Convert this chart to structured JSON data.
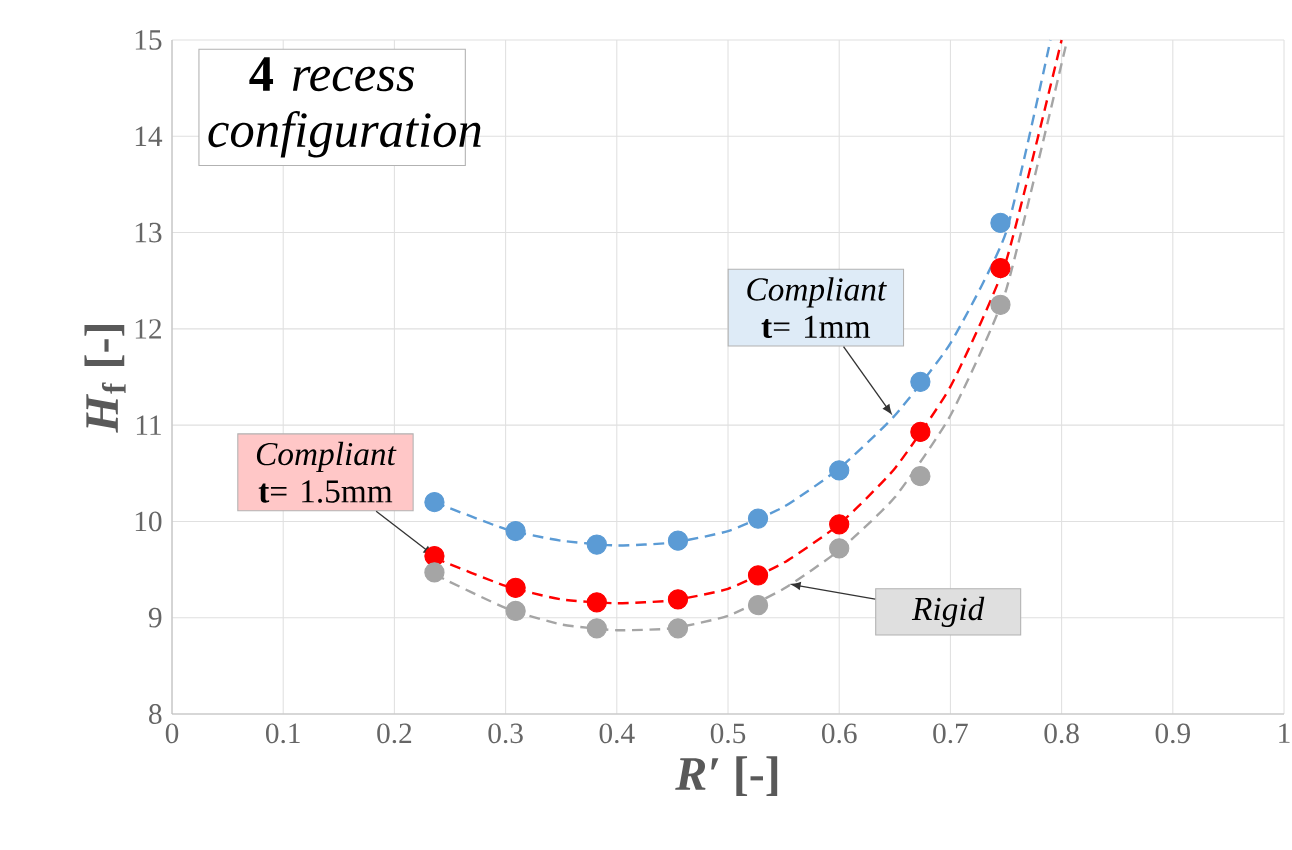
{
  "chart_data": {
    "type": "scatter",
    "xlabel": "*R′* [-]",
    "ylabel": "*H*$_{f}$ [-]",
    "xlim": [
      0,
      1
    ],
    "ylim": [
      8,
      15
    ],
    "xticks": [
      0,
      0.1,
      0.2,
      0.3,
      0.4,
      0.5,
      0.6,
      0.7,
      0.8,
      0.9,
      1
    ],
    "yticks": [
      8,
      9,
      10,
      11,
      12,
      13,
      14,
      15
    ],
    "grid": true,
    "annotations": [
      "**4** *recess configuration*",
      {
        "text": "*Compliant* **t**= 1mm",
        "x": 0.648,
        "y": 11.1
      },
      {
        "text": "*Compliant* **t**= 1.5mm",
        "x": 0.236,
        "y": 9.64
      },
      {
        "text": "*Rigid*",
        "x": 0.555,
        "y": 9.35
      }
    ],
    "series": [
      {
        "marker": "circle",
        "color": "#5b9bd5",
        "x": [
          0.236,
          0.309,
          0.382,
          0.455,
          0.527,
          0.6,
          0.673,
          0.745
        ],
        "values": [
          10.2,
          9.9,
          9.76,
          9.8,
          10.03,
          10.53,
          11.45,
          13.1
        ]
      },
      {
        "marker": "circle",
        "color": "#ff0000",
        "x": [
          0.236,
          0.309,
          0.382,
          0.455,
          0.527,
          0.6,
          0.673,
          0.745
        ],
        "values": [
          9.64,
          9.31,
          9.16,
          9.19,
          9.44,
          9.97,
          10.93,
          12.63
        ]
      },
      {
        "marker": "circle",
        "color": "#a5a5a5",
        "x": [
          0.236,
          0.309,
          0.382,
          0.455,
          0.527,
          0.6,
          0.673,
          0.745
        ],
        "values": [
          9.47,
          9.07,
          8.89,
          8.89,
          9.13,
          9.72,
          10.47,
          12.25
        ]
      },
      {
        "type": "line",
        "marker": "none",
        "line_style": "dashed",
        "color": "#5b9bd5",
        "x": [
          0.236,
          0.3,
          0.35,
          0.4,
          0.45,
          0.5,
          0.55,
          0.6,
          0.65,
          0.7,
          0.75,
          0.79
        ],
        "values": [
          10.2,
          9.92,
          9.8,
          9.75,
          9.78,
          9.9,
          10.15,
          10.55,
          11.1,
          11.85,
          13.0,
          15
        ]
      },
      {
        "type": "line",
        "marker": "none",
        "line_style": "dashed",
        "color": "#ff0000",
        "x": [
          0.236,
          0.3,
          0.35,
          0.4,
          0.45,
          0.5,
          0.55,
          0.6,
          0.65,
          0.7,
          0.75,
          0.8
        ],
        "values": [
          9.62,
          9.33,
          9.19,
          9.15,
          9.18,
          9.3,
          9.57,
          9.97,
          10.55,
          11.4,
          12.7,
          15
        ]
      },
      {
        "type": "line",
        "marker": "none",
        "line_style": "dashed",
        "color": "#a5a5a5",
        "x": [
          0.236,
          0.3,
          0.35,
          0.4,
          0.45,
          0.5,
          0.55,
          0.6,
          0.65,
          0.7,
          0.75,
          0.805
        ],
        "values": [
          9.45,
          9.1,
          8.93,
          8.87,
          8.89,
          9.02,
          9.3,
          9.7,
          10.25,
          11.1,
          12.4,
          15
        ]
      }
    ]
  }
}
